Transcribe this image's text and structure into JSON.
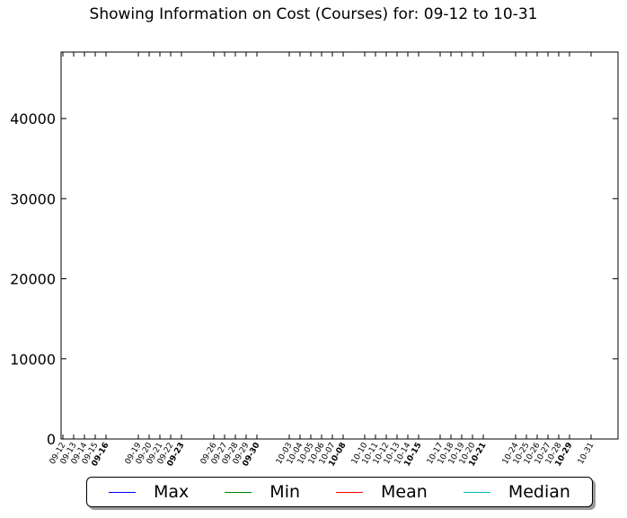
{
  "chart_data": {
    "type": "line",
    "title": "Showing Information on Cost (Courses) for: 09-12 to 10-31",
    "xlabel": "",
    "ylabel": "",
    "ylim": [
      0,
      48300
    ],
    "yticks": [
      0,
      10000,
      20000,
      30000,
      40000
    ],
    "x_ticks": [
      {
        "label": "09-12",
        "day": 0,
        "bold": false
      },
      {
        "label": "09-13",
        "day": 1,
        "bold": false
      },
      {
        "label": "09-14",
        "day": 2,
        "bold": false
      },
      {
        "label": "09-15",
        "day": 3,
        "bold": false
      },
      {
        "label": "09-16",
        "day": 4,
        "bold": true
      },
      {
        "label": "09-19",
        "day": 7,
        "bold": false
      },
      {
        "label": "09-20",
        "day": 8,
        "bold": false
      },
      {
        "label": "09-21",
        "day": 9,
        "bold": false
      },
      {
        "label": "09-22",
        "day": 10,
        "bold": false
      },
      {
        "label": "09-23",
        "day": 11,
        "bold": true
      },
      {
        "label": "09-26",
        "day": 14,
        "bold": false
      },
      {
        "label": "09-27",
        "day": 15,
        "bold": false
      },
      {
        "label": "09-28",
        "day": 16,
        "bold": false
      },
      {
        "label": "09-29",
        "day": 17,
        "bold": false
      },
      {
        "label": "09-30",
        "day": 18,
        "bold": true
      },
      {
        "label": "10-03",
        "day": 21,
        "bold": false
      },
      {
        "label": "10-04",
        "day": 22,
        "bold": false
      },
      {
        "label": "10-05",
        "day": 23,
        "bold": false
      },
      {
        "label": "10-06",
        "day": 24,
        "bold": false
      },
      {
        "label": "10-07",
        "day": 25,
        "bold": false
      },
      {
        "label": "10-08",
        "day": 26,
        "bold": true
      },
      {
        "label": "10-10",
        "day": 28,
        "bold": false
      },
      {
        "label": "10-11",
        "day": 29,
        "bold": false
      },
      {
        "label": "10-12",
        "day": 30,
        "bold": false
      },
      {
        "label": "10-13",
        "day": 31,
        "bold": false
      },
      {
        "label": "10-14",
        "day": 32,
        "bold": false
      },
      {
        "label": "10-15",
        "day": 33,
        "bold": true
      },
      {
        "label": "10-17",
        "day": 35,
        "bold": false
      },
      {
        "label": "10-18",
        "day": 36,
        "bold": false
      },
      {
        "label": "10-19",
        "day": 37,
        "bold": false
      },
      {
        "label": "10-20",
        "day": 38,
        "bold": false
      },
      {
        "label": "10-21",
        "day": 39,
        "bold": true
      },
      {
        "label": "10-24",
        "day": 42,
        "bold": false
      },
      {
        "label": "10-25",
        "day": 43,
        "bold": false
      },
      {
        "label": "10-26",
        "day": 44,
        "bold": false
      },
      {
        "label": "10-27",
        "day": 45,
        "bold": false
      },
      {
        "label": "10-28",
        "day": 46,
        "bold": false
      },
      {
        "label": "10-29",
        "day": 47,
        "bold": true
      },
      {
        "label": "10-31",
        "day": 49,
        "bold": false
      }
    ],
    "series": [
      {
        "name": "Max",
        "color": "#0000ff",
        "values": []
      },
      {
        "name": "Min",
        "color": "#008000",
        "values": []
      },
      {
        "name": "Mean",
        "color": "#ff0000",
        "values": []
      },
      {
        "name": "Median",
        "color": "#00bfbf",
        "values": []
      }
    ],
    "grid": false,
    "legend_position": "bottom"
  }
}
